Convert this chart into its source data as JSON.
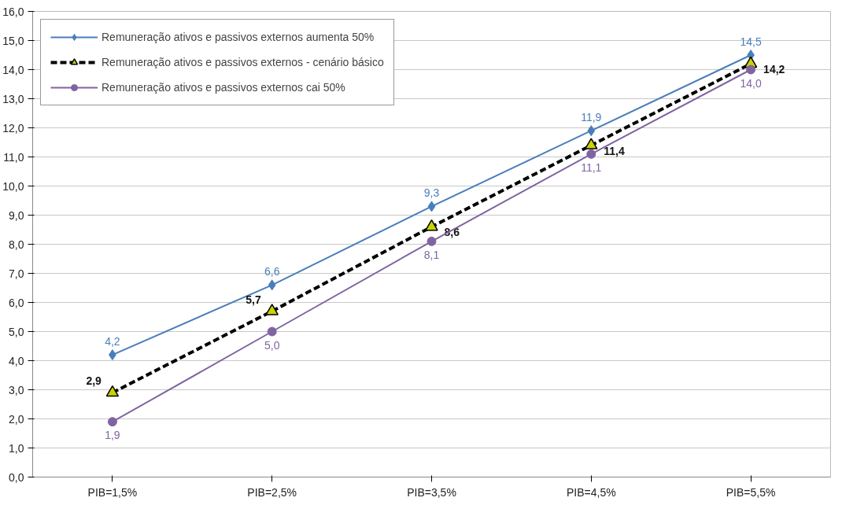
{
  "chart_data": {
    "type": "line",
    "categories": [
      "PIB=1,5%",
      "PIB=2,5%",
      "PIB=3,5%",
      "PIB=4,5%",
      "PIB=5,5%"
    ],
    "ylim": [
      0,
      16
    ],
    "yticks": [
      {
        "value": 0,
        "label": "0,0"
      },
      {
        "value": 1,
        "label": "1,0"
      },
      {
        "value": 2,
        "label": "2,0"
      },
      {
        "value": 3,
        "label": "3,0"
      },
      {
        "value": 4,
        "label": "4,0"
      },
      {
        "value": 5,
        "label": "5,0"
      },
      {
        "value": 6,
        "label": "6,0"
      },
      {
        "value": 7,
        "label": "7,0"
      },
      {
        "value": 8,
        "label": "8,0"
      },
      {
        "value": 9,
        "label": "9,0"
      },
      {
        "value": 10,
        "label": "10,0"
      },
      {
        "value": 11,
        "label": "11,0"
      },
      {
        "value": 12,
        "label": "12,0"
      },
      {
        "value": 13,
        "label": "13,0"
      },
      {
        "value": 14,
        "label": "14,0"
      },
      {
        "value": 15,
        "label": "15,0"
      },
      {
        "value": 16,
        "label": "16,0"
      }
    ],
    "grid": "y",
    "legend": "top left",
    "series": [
      {
        "name": "Remuneração ativos e passivos externos aumenta 50%",
        "color": "#4a7ebb",
        "marker": "diamond",
        "line_style": "solid",
        "values": [
          4.2,
          6.6,
          9.3,
          11.9,
          14.5
        ],
        "value_labels": [
          "4,2",
          "6,6",
          "9,3",
          "11,9",
          "14,5"
        ]
      },
      {
        "name": "Remuneração ativos e passivos externos - cenário básico",
        "color": "#000000",
        "marker": "triangle",
        "line_style": "dashed",
        "values": [
          2.9,
          5.7,
          8.6,
          11.4,
          14.2
        ],
        "value_labels": [
          "2,9",
          "5,7",
          "8,6",
          "11,4",
          "14,2"
        ]
      },
      {
        "name": "Remuneração ativos e passivos externos cai 50%",
        "color": "#8064a2",
        "marker": "circle",
        "line_style": "solid",
        "values": [
          1.9,
          5.0,
          8.1,
          11.1,
          14.0
        ],
        "value_labels": [
          "1,9",
          "5,0",
          "8,1",
          "11,1",
          "14,0"
        ]
      }
    ]
  }
}
